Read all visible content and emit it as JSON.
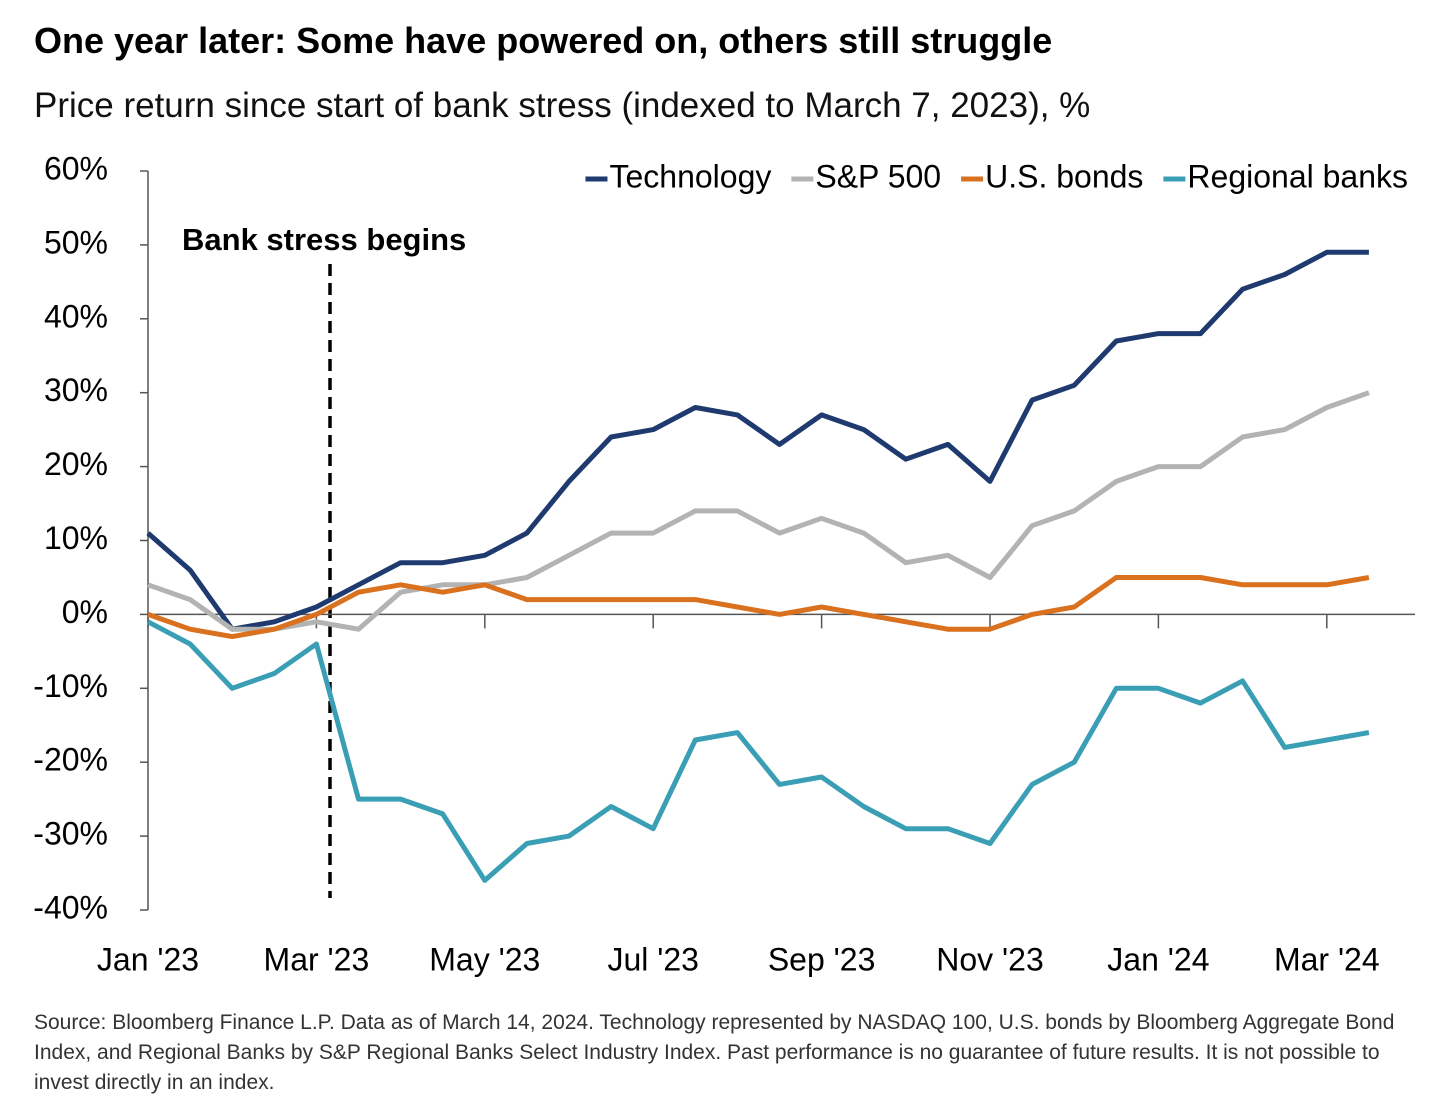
{
  "chart_data": {
    "type": "line",
    "title": "One year later: Some have powered on, others still struggle",
    "subtitle": "Price return since start of bank stress (indexed to March 7, 2023), %",
    "annotation": "Bank stress begins",
    "source": "Source: Bloomberg Finance L.P. Data as of March 14, 2024. Technology represented by NASDAQ 100, U.S. bonds by Bloomberg Aggregate Bond Index, and Regional Banks by S&P Regional Banks Select Industry Index. Past performance is no guarantee of future results. It is not possible to invest directly in an index.",
    "categories": [
      "Jan '23",
      null,
      null,
      null,
      "Mar '23",
      null,
      null,
      null,
      "May '23",
      null,
      null,
      null,
      "Jul '23",
      null,
      null,
      null,
      "Sep '23",
      null,
      null,
      null,
      "Nov '23",
      null,
      null,
      null,
      "Jan '24",
      null,
      null,
      null,
      "Mar '24",
      null
    ],
    "series": [
      {
        "name": "Technology",
        "color": "#1f3a6e",
        "values": [
          11,
          6,
          -2,
          -1,
          1,
          4,
          7,
          7,
          8,
          11,
          18,
          24,
          25,
          28,
          27,
          23,
          27,
          25,
          21,
          23,
          18,
          29,
          31,
          37,
          38,
          38,
          44,
          46,
          49,
          49
        ]
      },
      {
        "name": "S&P 500",
        "color": "#b3b3b3",
        "values": [
          4,
          2,
          -2,
          -2,
          -1,
          -2,
          3,
          4,
          4,
          5,
          8,
          11,
          11,
          14,
          14,
          11,
          13,
          11,
          7,
          8,
          5,
          12,
          14,
          18,
          20,
          20,
          24,
          25,
          28,
          30
        ]
      },
      {
        "name": "U.S. bonds",
        "color": "#d9711f",
        "values": [
          0,
          -2,
          -3,
          -2,
          0,
          3,
          4,
          3,
          4,
          2,
          2,
          2,
          2,
          2,
          1,
          0,
          1,
          0,
          -1,
          -2,
          -2,
          0,
          1,
          5,
          5,
          5,
          4,
          4,
          4,
          5
        ]
      },
      {
        "name": "Regional banks",
        "color": "#3a9fb5",
        "values": [
          -1,
          -4,
          -10,
          -8,
          -4,
          -25,
          -25,
          -27,
          -36,
          -31,
          -30,
          -26,
          -29,
          -17,
          -16,
          -23,
          -22,
          -26,
          -29,
          -29,
          -31,
          -23,
          -20,
          -10,
          -10,
          -12,
          -9,
          -18,
          -17,
          -16
        ]
      }
    ],
    "ylim": [
      -40,
      60
    ],
    "yticks": [
      {
        "value": -40,
        "label": "-40%"
      },
      {
        "value": -30,
        "label": "-30%"
      },
      {
        "value": -20,
        "label": "-20%"
      },
      {
        "value": -10,
        "label": "-10%"
      },
      {
        "value": 0,
        "label": "0%"
      },
      {
        "value": 10,
        "label": "10%"
      },
      {
        "value": 20,
        "label": "20%"
      },
      {
        "value": 30,
        "label": "30%"
      },
      {
        "value": 40,
        "label": "40%"
      },
      {
        "value": 50,
        "label": "50%"
      },
      {
        "value": 60,
        "label": "60%"
      }
    ],
    "legend": "top-right"
  }
}
